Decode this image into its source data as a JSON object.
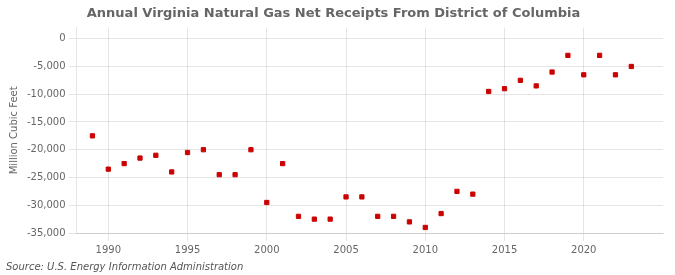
{
  "chart_data": {
    "type": "scatter",
    "title": "Annual Virginia Natural Gas Net Receipts From District of Columbia",
    "ylabel": "Million Cubic Feet",
    "annotation": "Source: U.S. Energy Information Administration",
    "color": "#cc0000",
    "marker": "square",
    "x": [
      1989,
      1990,
      1991,
      1992,
      1993,
      1994,
      1995,
      1996,
      1997,
      1998,
      1999,
      2000,
      2001,
      2002,
      2003,
      2004,
      2005,
      2006,
      2007,
      2008,
      2009,
      2010,
      2011,
      2012,
      2013,
      2014,
      2015,
      2016,
      2017,
      2018,
      2019,
      2020,
      2021,
      2022,
      2023
    ],
    "values": [
      -17500,
      -23500,
      -22500,
      -21500,
      -21000,
      -24000,
      -20500,
      -20000,
      -24500,
      -24500,
      -20000,
      -29500,
      -22500,
      -32000,
      -32500,
      -32500,
      -28500,
      -28500,
      -32000,
      -32000,
      -33000,
      -34000,
      -31500,
      -27500,
      -28000,
      -9500,
      -9000,
      -7500,
      -8500,
      -6000,
      -3000,
      -6500,
      -3000,
      -6500,
      -5000
    ],
    "xlim": [
      1988,
      2025
    ],
    "ylim": [
      -35000,
      2000
    ],
    "xticks": [
      1990,
      1995,
      2000,
      2005,
      2010,
      2015,
      2020
    ],
    "yticks": [
      0,
      {
        "value": -5000,
        "label": "-5,000"
      },
      {
        "value": -10000,
        "label": "-10,000"
      },
      {
        "value": -15000,
        "label": "-15,000"
      },
      {
        "value": -20000,
        "label": "-20,000"
      },
      {
        "value": -25000,
        "label": "-25,000"
      },
      {
        "value": -30000,
        "label": "-30,000"
      },
      {
        "value": -35000,
        "label": "-35,000"
      }
    ],
    "grid": true
  }
}
